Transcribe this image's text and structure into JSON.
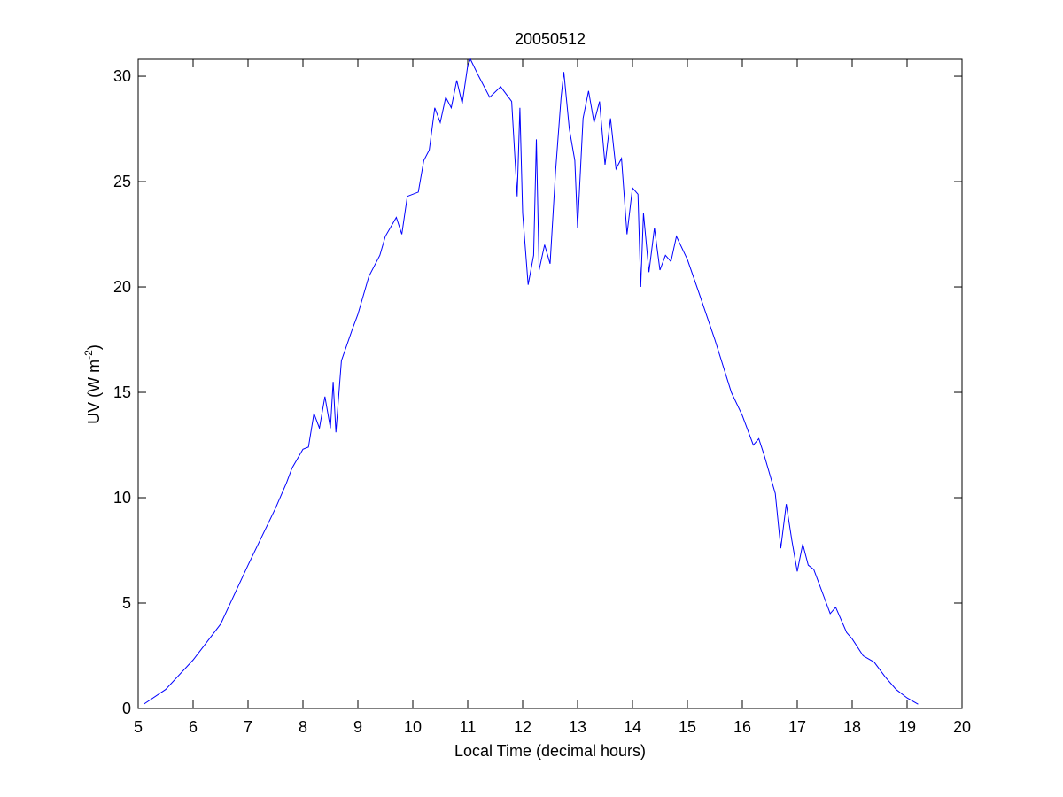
{
  "chart_data": {
    "type": "line",
    "title": "20050512",
    "xlabel": "Local Time (decimal hours)",
    "ylabel": {
      "text": "UV (W m",
      "sup": "-2",
      "tail": ")"
    },
    "xlim": [
      5,
      20
    ],
    "ylim": [
      0,
      30.8
    ],
    "xticks": [
      5,
      6,
      7,
      8,
      9,
      10,
      11,
      12,
      13,
      14,
      15,
      16,
      17,
      18,
      19,
      20
    ],
    "yticks": [
      0,
      5,
      10,
      15,
      20,
      25,
      30
    ],
    "grid": false,
    "x": [
      5.1,
      5.5,
      6.0,
      6.5,
      7.0,
      7.5,
      7.7,
      7.8,
      8.0,
      8.1,
      8.2,
      8.3,
      8.4,
      8.5,
      8.55,
      8.6,
      8.7,
      8.9,
      9.0,
      9.2,
      9.4,
      9.5,
      9.7,
      9.8,
      9.9,
      10.1,
      10.2,
      10.3,
      10.4,
      10.5,
      10.6,
      10.7,
      10.8,
      10.9,
      11.0,
      11.05,
      11.2,
      11.4,
      11.6,
      11.8,
      11.9,
      11.95,
      12.0,
      12.1,
      12.2,
      12.25,
      12.3,
      12.4,
      12.5,
      12.6,
      12.7,
      12.75,
      12.85,
      12.95,
      13.0,
      13.1,
      13.2,
      13.3,
      13.4,
      13.5,
      13.6,
      13.7,
      13.8,
      13.9,
      14.0,
      14.1,
      14.15,
      14.2,
      14.3,
      14.4,
      14.5,
      14.6,
      14.7,
      14.8,
      15.0,
      15.2,
      15.5,
      15.8,
      16.0,
      16.2,
      16.3,
      16.4,
      16.6,
      16.7,
      16.8,
      16.9,
      17.0,
      17.1,
      17.2,
      17.3,
      17.5,
      17.6,
      17.7,
      17.9,
      18.0,
      18.2,
      18.4,
      18.6,
      18.8,
      19.0,
      19.2
    ],
    "series": [
      {
        "color": "#0000ff",
        "values": [
          0.2,
          0.9,
          2.3,
          4.0,
          6.8,
          9.5,
          10.7,
          11.4,
          12.3,
          12.4,
          14.0,
          13.3,
          14.8,
          13.3,
          15.5,
          13.1,
          16.5,
          18.0,
          18.7,
          20.5,
          21.5,
          22.4,
          23.3,
          22.5,
          24.3,
          24.5,
          26.0,
          26.5,
          28.5,
          27.8,
          29.0,
          28.5,
          29.8,
          28.7,
          30.5,
          30.8,
          30.0,
          29.0,
          29.5,
          28.8,
          24.3,
          28.5,
          23.5,
          20.1,
          21.5,
          27.0,
          20.8,
          22.0,
          21.1,
          25.5,
          29.0,
          30.2,
          27.5,
          26.0,
          22.8,
          28.0,
          29.3,
          27.8,
          28.8,
          25.8,
          28.0,
          25.6,
          26.1,
          22.5,
          24.7,
          24.4,
          20.0,
          23.5,
          20.7,
          22.8,
          20.8,
          21.5,
          21.2,
          22.4,
          21.3,
          19.8,
          17.5,
          15.0,
          13.9,
          12.5,
          12.8,
          12.0,
          10.2,
          7.6,
          9.7,
          8.0,
          6.5,
          7.8,
          6.8,
          6.6,
          5.2,
          4.5,
          4.8,
          3.6,
          3.3,
          2.5,
          2.2,
          1.5,
          0.9,
          0.5,
          0.2
        ]
      }
    ]
  }
}
